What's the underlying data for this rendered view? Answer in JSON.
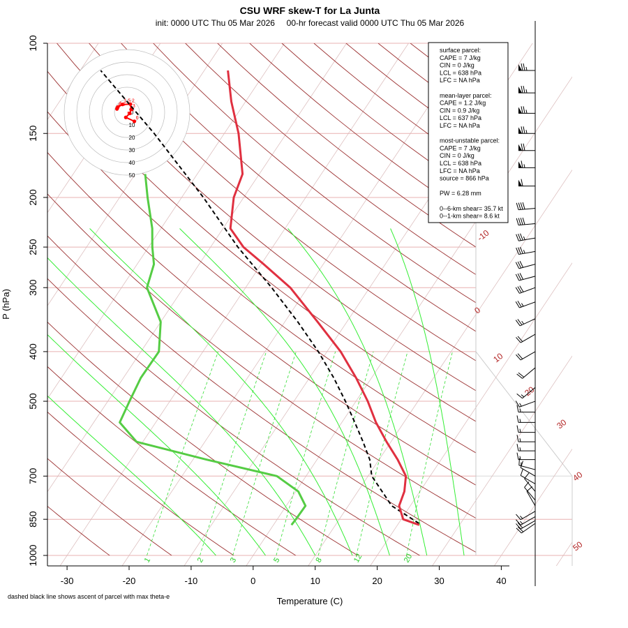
{
  "chart_data": {
    "type": "skew-t",
    "title": "CSU WRF skew-T for La Junta",
    "subtitle": "init: 0000 UTC Thu 05 Mar 2026     00-hr forecast valid 0000 UTC Thu 05 Mar 2026",
    "xlabel": "Temperature (C)",
    "ylabel": "P (hPa)",
    "footnote": "dashed black line shows ascent of parcel with max theta-e",
    "xlim": [
      -33,
      46
    ],
    "plim": [
      1050,
      100
    ],
    "x_ticks": [
      -30,
      -20,
      -10,
      0,
      10,
      20,
      30,
      40
    ],
    "p_ticks": [
      100,
      150,
      200,
      250,
      300,
      400,
      500,
      700,
      850,
      1000
    ],
    "isotherm_labels": [
      -10,
      0,
      10,
      20,
      30,
      40,
      50
    ],
    "mixing_ratio_labels": [
      "1",
      "2",
      "3",
      "5",
      "8",
      "12",
      "20"
    ],
    "temperature_profile": [
      {
        "p": 872,
        "t": 23.5
      },
      {
        "p": 850,
        "t": 20.3
      },
      {
        "p": 800,
        "t": 18.2
      },
      {
        "p": 750,
        "t": 17.5
      },
      {
        "p": 700,
        "t": 16.1
      },
      {
        "p": 650,
        "t": 13.0
      },
      {
        "p": 600,
        "t": 9.3
      },
      {
        "p": 550,
        "t": 5.5
      },
      {
        "p": 500,
        "t": 1.9
      },
      {
        "p": 450,
        "t": -2.5
      },
      {
        "p": 400,
        "t": -7.8
      },
      {
        "p": 350,
        "t": -14.7
      },
      {
        "p": 300,
        "t": -22.8
      },
      {
        "p": 270,
        "t": -29.6
      },
      {
        "p": 250,
        "t": -34.7
      },
      {
        "p": 230,
        "t": -38.8
      },
      {
        "p": 200,
        "t": -41.6
      },
      {
        "p": 180,
        "t": -42.7
      },
      {
        "p": 150,
        "t": -47.7
      },
      {
        "p": 130,
        "t": -52.3
      },
      {
        "p": 113,
        "t": -56.2
      }
    ],
    "dewpoint_profile": [
      {
        "p": 872,
        "t": 2.9
      },
      {
        "p": 850,
        "t": 3.0
      },
      {
        "p": 800,
        "t": 3.1
      },
      {
        "p": 750,
        "t": 0.4
      },
      {
        "p": 700,
        "t": -4.7
      },
      {
        "p": 650,
        "t": -17.8
      },
      {
        "p": 600,
        "t": -31.0
      },
      {
        "p": 550,
        "t": -35.8
      },
      {
        "p": 500,
        "t": -36.5
      },
      {
        "p": 450,
        "t": -37.2
      },
      {
        "p": 400,
        "t": -37.1
      },
      {
        "p": 350,
        "t": -40.0
      },
      {
        "p": 300,
        "t": -45.9
      },
      {
        "p": 270,
        "t": -47.3
      },
      {
        "p": 250,
        "t": -49.4
      },
      {
        "p": 230,
        "t": -51.4
      },
      {
        "p": 200,
        "t": -55.5
      },
      {
        "p": 180,
        "t": -58.4
      }
    ],
    "parcel_path": [
      {
        "p": 866,
        "t": 23.3
      },
      {
        "p": 800,
        "t": 17.0
      },
      {
        "p": 700,
        "t": 10.6
      },
      {
        "p": 650,
        "t": 8.5
      },
      {
        "p": 600,
        "t": 5.5
      },
      {
        "p": 550,
        "t": 2.1
      },
      {
        "p": 500,
        "t": -1.7
      },
      {
        "p": 450,
        "t": -6.1
      },
      {
        "p": 400,
        "t": -11.4
      },
      {
        "p": 350,
        "t": -17.9
      },
      {
        "p": 300,
        "t": -25.8
      },
      {
        "p": 250,
        "t": -35.6
      },
      {
        "p": 200,
        "t": -46.5
      },
      {
        "p": 150,
        "t": -61.3
      },
      {
        "p": 113,
        "t": -76.7
      }
    ],
    "wind_barbs": [
      {
        "p": 113,
        "spd": 75,
        "dir": 270
      },
      {
        "p": 125,
        "spd": 75,
        "dir": 270
      },
      {
        "p": 137,
        "spd": 75,
        "dir": 270
      },
      {
        "p": 150,
        "spd": 75,
        "dir": 270
      },
      {
        "p": 162,
        "spd": 70,
        "dir": 270
      },
      {
        "p": 175,
        "spd": 65,
        "dir": 270
      },
      {
        "p": 190,
        "spd": 60,
        "dir": 270
      },
      {
        "p": 210,
        "spd": 40,
        "dir": 265
      },
      {
        "p": 225,
        "spd": 40,
        "dir": 265
      },
      {
        "p": 240,
        "spd": 35,
        "dir": 260
      },
      {
        "p": 255,
        "spd": 35,
        "dir": 260
      },
      {
        "p": 270,
        "spd": 30,
        "dir": 255
      },
      {
        "p": 285,
        "spd": 30,
        "dir": 255
      },
      {
        "p": 300,
        "spd": 30,
        "dir": 250
      },
      {
        "p": 320,
        "spd": 25,
        "dir": 250
      },
      {
        "p": 345,
        "spd": 25,
        "dir": 245
      },
      {
        "p": 370,
        "spd": 20,
        "dir": 240
      },
      {
        "p": 400,
        "spd": 20,
        "dir": 240
      },
      {
        "p": 430,
        "spd": 20,
        "dir": 230
      },
      {
        "p": 470,
        "spd": 15,
        "dir": 230
      },
      {
        "p": 500,
        "spd": 15,
        "dir": 250
      },
      {
        "p": 525,
        "spd": 15,
        "dir": 270
      },
      {
        "p": 550,
        "spd": 15,
        "dir": 270
      },
      {
        "p": 575,
        "spd": 15,
        "dir": 270
      },
      {
        "p": 600,
        "spd": 15,
        "dir": 270
      },
      {
        "p": 625,
        "spd": 15,
        "dir": 270
      },
      {
        "p": 650,
        "spd": 15,
        "dir": 270
      },
      {
        "p": 680,
        "spd": 15,
        "dir": 285
      },
      {
        "p": 700,
        "spd": 10,
        "dir": 300
      },
      {
        "p": 725,
        "spd": 10,
        "dir": 300
      },
      {
        "p": 750,
        "spd": 10,
        "dir": 320
      },
      {
        "p": 780,
        "spd": 10,
        "dir": 320
      },
      {
        "p": 800,
        "spd": 10,
        "dir": 330
      },
      {
        "p": 820,
        "spd": 15,
        "dir": 240
      },
      {
        "p": 840,
        "spd": 15,
        "dir": 240
      },
      {
        "p": 855,
        "spd": 20,
        "dir": 240
      },
      {
        "p": 866,
        "spd": 20,
        "dir": 235
      }
    ],
    "hodograph": {
      "ring_labels": [
        0,
        10,
        20,
        30,
        40,
        50
      ],
      "point_labels": [
        "0",
        "0.5",
        "1",
        "1.5",
        "2",
        "3",
        "4",
        "5",
        "6"
      ],
      "points": [
        {
          "u": -0.2,
          "v": -0.6
        },
        {
          "u": 0.1,
          "v": 0.2
        },
        {
          "u": 0.5,
          "v": 0.9
        },
        {
          "u": 4.0,
          "v": 2.8
        },
        {
          "u": 10.0,
          "v": 3.0
        },
        {
          "u": 10.5,
          "v": -1.0
        },
        {
          "u": 9.5,
          "v": -4.0
        },
        {
          "u": 6.5,
          "v": -7.0
        },
        {
          "u": 13.0,
          "v": -10.0
        }
      ]
    },
    "stats_legend": [
      "surface parcel:",
      "CAPE = 7 J/kg",
      "CIN = 0 J/kg",
      "LCL = 638 hPa",
      "LFC = NA hPa",
      "",
      "mean-layer parcel:",
      "CAPE = 1.2 J/kg",
      "CIN = 0.9 J/kg",
      "LCL = 637 hPa",
      "LFC = NA hPa",
      "",
      "most-unstable parcel:",
      "CAPE = 7 J/kg",
      "CIN = 0 J/kg",
      "LCL = 638 hPa",
      "LFC = NA hPa",
      "source = 866 hPa",
      "",
      "PW =  6.28 mm",
      "",
      "0--6-km shear= 35.7 kt",
      "0--1-km shear= 8.6 kt"
    ],
    "colors": {
      "temperature": "#e03040",
      "dewpoint": "#55cc44",
      "parcel": "#000000",
      "isotherm": "#a52020",
      "dry_adiabat": "#9b3030",
      "moist_adiabat": "#33ee33",
      "mixing_ratio": "#33dd33",
      "isobar": "#e8b0b0",
      "hodograph": "#ff0000"
    }
  }
}
